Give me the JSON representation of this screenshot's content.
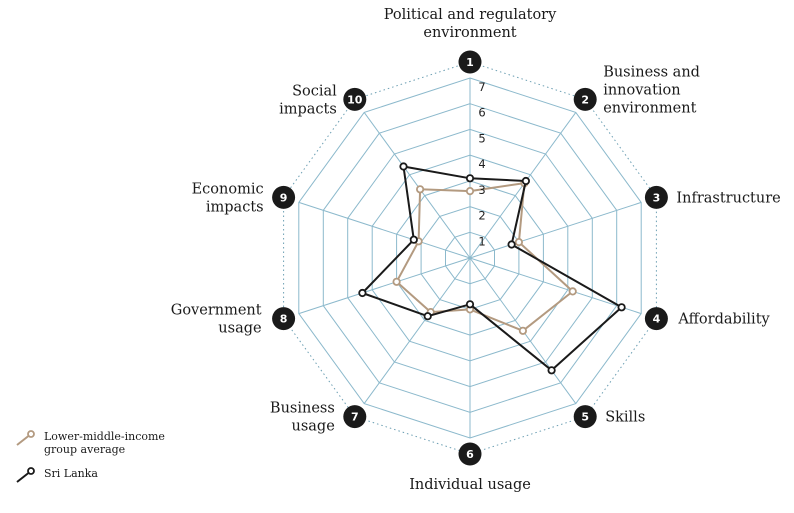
{
  "chart_data": {
    "type": "radar",
    "title": "",
    "axes": [
      {
        "number": "1",
        "label": [
          "Political and regulatory",
          "environment"
        ]
      },
      {
        "number": "2",
        "label": [
          "Business and",
          "innovation",
          "environment"
        ]
      },
      {
        "number": "3",
        "label": [
          "Infrastructure"
        ]
      },
      {
        "number": "4",
        "label": [
          "Affordability"
        ]
      },
      {
        "number": "5",
        "label": [
          "Skills"
        ]
      },
      {
        "number": "6",
        "label": [
          "Individual usage"
        ]
      },
      {
        "number": "7",
        "label": [
          "Business",
          "usage"
        ]
      },
      {
        "number": "8",
        "label": [
          "Government",
          "usage"
        ]
      },
      {
        "number": "9",
        "label": [
          "Economic",
          "impacts"
        ]
      },
      {
        "number": "10",
        "label": [
          "Social",
          "impacts"
        ]
      }
    ],
    "scale": {
      "min": 0,
      "max": 7,
      "ticks": [
        "1",
        "2",
        "3",
        "4",
        "5",
        "6",
        "7"
      ]
    },
    "series": [
      {
        "name": "Lower-middle-income group average",
        "color": "#b39a80",
        "values": [
          2.6,
          3.6,
          2.0,
          4.2,
          3.5,
          2.0,
          2.6,
          3.0,
          2.1,
          3.3
        ]
      },
      {
        "name": "Sri Lanka",
        "color": "#1a1a1a",
        "values": [
          3.1,
          3.7,
          1.7,
          6.2,
          5.4,
          1.8,
          2.8,
          4.4,
          2.3,
          4.4
        ]
      }
    ],
    "legend_position": "bottom-left",
    "grid": true
  },
  "colors": {
    "grid": "#8cb9cc",
    "outer_dotted": "#6c9fb3",
    "badge": "#1a1a1a"
  }
}
